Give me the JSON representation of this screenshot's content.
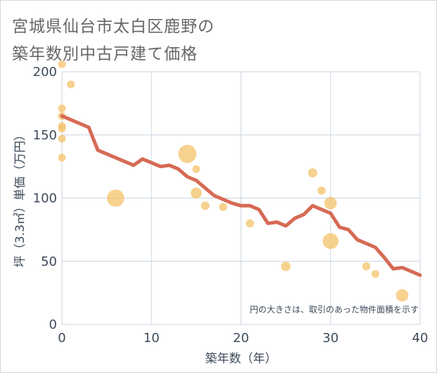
{
  "title_lines": [
    "宮城県仙台市太白区鹿野の",
    "築年数別中古戸建て価格"
  ],
  "colors": {
    "line": "#d66a55",
    "bubble": "#f5c46e",
    "grid": "#c9d5e3",
    "axis": "#3d4a5a",
    "title": "#666666"
  },
  "chart_data": {
    "type": "scatter",
    "title": "宮城県仙台市太白区鹿野の築年数別中古戸建て価格",
    "xlabel": "築年数（年）",
    "ylabel": "坪（3.3㎡）単価（万円）",
    "xlim": [
      0,
      40
    ],
    "ylim": [
      0,
      200
    ],
    "xticks": [
      0,
      10,
      20,
      30,
      40
    ],
    "yticks": [
      0,
      50,
      100,
      150,
      200
    ],
    "grid": true,
    "note": "円の大きさは、取引のあった物件面積を示す",
    "bubbles": [
      {
        "x": 0,
        "y": 206,
        "size": 1
      },
      {
        "x": 0,
        "y": 171,
        "size": 1
      },
      {
        "x": 0,
        "y": 165,
        "size": 1
      },
      {
        "x": 0,
        "y": 157,
        "size": 1
      },
      {
        "x": 0,
        "y": 155,
        "size": 1
      },
      {
        "x": 0,
        "y": 147,
        "size": 1
      },
      {
        "x": 0,
        "y": 132,
        "size": 1
      },
      {
        "x": 1,
        "y": 190,
        "size": 1
      },
      {
        "x": 6,
        "y": 100,
        "size": 5
      },
      {
        "x": 14,
        "y": 135,
        "size": 5.5
      },
      {
        "x": 15,
        "y": 123,
        "size": 1
      },
      {
        "x": 15,
        "y": 104,
        "size": 2
      },
      {
        "x": 16,
        "y": 94,
        "size": 1.2
      },
      {
        "x": 18,
        "y": 93,
        "size": 1.1
      },
      {
        "x": 21,
        "y": 80,
        "size": 1.1
      },
      {
        "x": 25,
        "y": 46,
        "size": 1.5
      },
      {
        "x": 28,
        "y": 120,
        "size": 1.4
      },
      {
        "x": 29,
        "y": 106,
        "size": 1.1
      },
      {
        "x": 30,
        "y": 96,
        "size": 2.6
      },
      {
        "x": 30,
        "y": 66,
        "size": 4.2
      },
      {
        "x": 34,
        "y": 46,
        "size": 1.1
      },
      {
        "x": 35,
        "y": 40,
        "size": 1
      },
      {
        "x": 38,
        "y": 23,
        "size": 2.6
      }
    ],
    "series": [
      {
        "type": "line",
        "x": [
          0,
          1,
          2,
          3,
          4,
          5,
          6,
          7,
          8,
          9,
          10,
          11,
          12,
          13,
          14,
          15,
          16,
          17,
          18,
          19,
          20,
          21,
          22,
          23,
          24,
          25,
          26,
          27,
          28,
          29,
          30,
          31,
          32,
          33,
          34,
          35,
          36,
          37,
          38,
          39,
          40
        ],
        "values": [
          165,
          162,
          159,
          156,
          138,
          135,
          132,
          129,
          126,
          131,
          128,
          125,
          126,
          123,
          117,
          114,
          108,
          102,
          99,
          96,
          94,
          94,
          91,
          80,
          81,
          78,
          84,
          87,
          94,
          91,
          88,
          77,
          75,
          67,
          64,
          61,
          53,
          44,
          45,
          42,
          39
        ]
      }
    ]
  }
}
